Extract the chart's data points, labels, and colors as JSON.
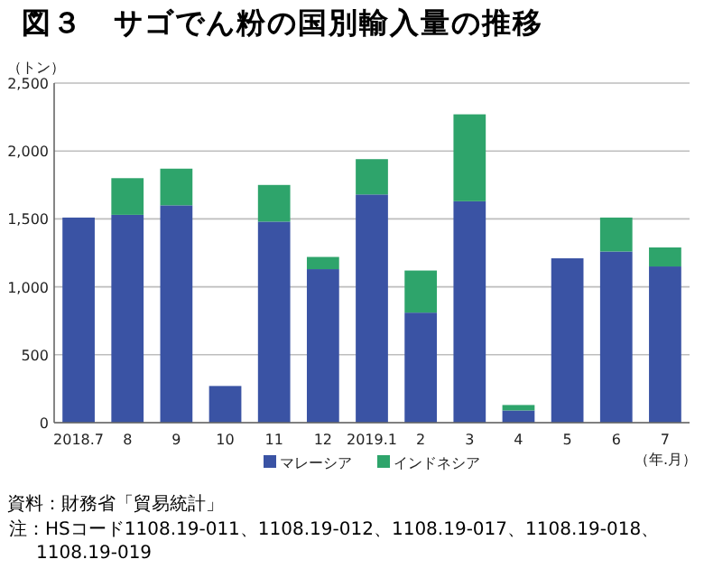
{
  "chart_data": {
    "type": "bar",
    "title": "図３　サゴでん粉の国別輸入量の推移",
    "ylabel": "（トン）",
    "xlabel": "（年.月）",
    "categories": [
      "2018.7",
      "8",
      "9",
      "10",
      "11",
      "12",
      "2019.1",
      "2",
      "3",
      "4",
      "5",
      "6",
      "7"
    ],
    "stacked": true,
    "series": [
      {
        "name": "マレーシア",
        "color": "#3a53a4",
        "values": [
          1510,
          1530,
          1600,
          270,
          1480,
          1130,
          1680,
          810,
          1630,
          90,
          1210,
          1260,
          1150
        ]
      },
      {
        "name": "インドネシア",
        "color": "#2ea46b",
        "values": [
          0,
          270,
          270,
          0,
          270,
          90,
          260,
          310,
          640,
          40,
          0,
          250,
          140
        ]
      }
    ],
    "ylim": [
      0,
      2500
    ],
    "yticks": [
      {
        "value": 0,
        "label": "0"
      },
      {
        "value": 500,
        "label": "500"
      },
      {
        "value": 1000,
        "label": "1,000"
      },
      {
        "value": 1500,
        "label": "1,500"
      },
      {
        "value": 2000,
        "label": "2,000"
      },
      {
        "value": 2500,
        "label": "2,500"
      }
    ],
    "grid": "y",
    "legend": "bottom",
    "annotations": [
      "資料：財務省「貿易統計」",
      "注：HSコード1108.19-011、1108.19-012、1108.19-017、1108.19-018、1108.19-019"
    ]
  }
}
